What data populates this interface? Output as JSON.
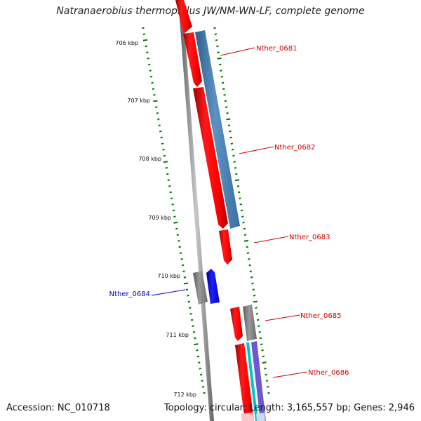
{
  "title": "Natranaerobius thermophilus JW/NM-WN-LF, complete genome",
  "footer": {
    "accession": "Accession: NC_010718",
    "summary": "Topology: circular; Length: 3,165,557 bp; Genes: 2,946"
  },
  "scale_labels": [
    "706 kbp",
    "707 kbp",
    "708 kbp",
    "709 kbp",
    "710 kbp",
    "711 kbp",
    "712 kbp"
  ],
  "genes": [
    {
      "name": "Nther_0681",
      "color": "#d00000"
    },
    {
      "name": "Nther_0682",
      "color": "#d00000"
    },
    {
      "name": "Nther_0683",
      "color": "#d00000"
    },
    {
      "name": "Nther_0684",
      "color": "#0000cc"
    },
    {
      "name": "Nther_0685",
      "color": "#d00000"
    },
    {
      "name": "Nther_0686",
      "color": "#d00000"
    }
  ],
  "colors": {
    "cds_forward": "#ff0000",
    "cds_blue": "#0000ff",
    "cds_grey": "#808080",
    "feature_steelblue": "#4682b4",
    "feature_cyan": "#00cccc",
    "feature_purple": "#6a5acd",
    "tick_green": "#007700",
    "backbone": "#808080"
  }
}
